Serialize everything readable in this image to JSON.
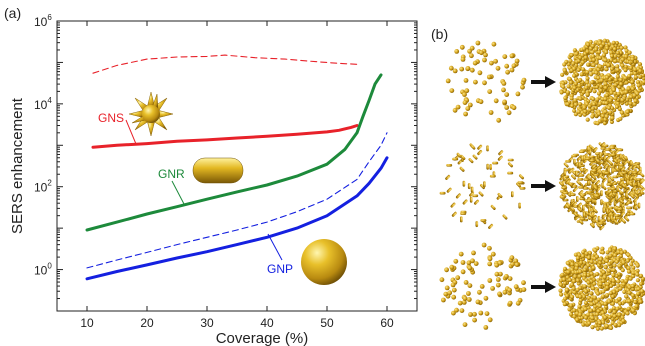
{
  "panel_labels": {
    "a": "(a)",
    "b": "(b)"
  },
  "chart_data": {
    "type": "line",
    "title": "",
    "xlabel": "Coverage (%)",
    "ylabel": "SERS enhancement",
    "xlim": [
      5,
      65
    ],
    "ylim_log10": [
      -1,
      6
    ],
    "y_scale": "log",
    "x_ticks": [
      10,
      20,
      30,
      40,
      50,
      60
    ],
    "y_ticks": [
      {
        "base": "10",
        "exp": "0",
        "value": 1
      },
      {
        "base": "10",
        "exp": "2",
        "value": 100
      },
      {
        "base": "10",
        "exp": "4",
        "value": 10000
      },
      {
        "base": "10",
        "exp": "6",
        "value": 1000000
      }
    ],
    "grid": false,
    "series": [
      {
        "name": "GNS",
        "color": "#e8222a",
        "style": "solid",
        "x": [
          11,
          15,
          20,
          25,
          30,
          35,
          40,
          45,
          50,
          52,
          54,
          55
        ],
        "y": [
          900,
          1000,
          1100,
          1250,
          1350,
          1500,
          1650,
          1850,
          2100,
          2300,
          2700,
          3000
        ]
      },
      {
        "name": "GNS",
        "color": "#e8222a",
        "style": "dashed",
        "x": [
          11,
          15,
          20,
          25,
          30,
          33,
          38,
          43,
          48,
          52,
          55
        ],
        "y": [
          55000,
          85000,
          120000,
          135000,
          140000,
          150000,
          130000,
          120000,
          105000,
          95000,
          90000
        ]
      },
      {
        "name": "GNR",
        "color": "#1d8a3b",
        "style": "solid",
        "x": [
          10,
          15,
          20,
          25,
          30,
          35,
          40,
          45,
          50,
          53,
          55,
          56,
          57,
          58,
          59
        ],
        "y": [
          9,
          14,
          22,
          33,
          50,
          75,
          110,
          180,
          350,
          800,
          2000,
          5000,
          12000,
          30000,
          50000
        ]
      },
      {
        "name": "GNP",
        "color": "#1420e0",
        "style": "solid",
        "x": [
          10,
          15,
          20,
          25,
          30,
          35,
          40,
          45,
          50,
          55,
          57,
          59,
          60
        ],
        "y": [
          0.6,
          0.9,
          1.3,
          1.9,
          2.7,
          4,
          6,
          10,
          20,
          60,
          120,
          280,
          500
        ]
      },
      {
        "name": "GNP",
        "color": "#1420e0",
        "style": "dashed",
        "x": [
          10,
          15,
          20,
          25,
          30,
          35,
          40,
          45,
          50,
          55,
          57,
          59,
          60
        ],
        "y": [
          1.1,
          1.7,
          2.6,
          4,
          6,
          9,
          14,
          25,
          50,
          150,
          400,
          1000,
          2000
        ]
      }
    ],
    "annotations": [
      {
        "text": "GNS",
        "color": "#e8222a"
      },
      {
        "text": "GNR",
        "color": "#1d8a3b"
      },
      {
        "text": "GNP",
        "color": "#1420e0"
      }
    ]
  }
}
